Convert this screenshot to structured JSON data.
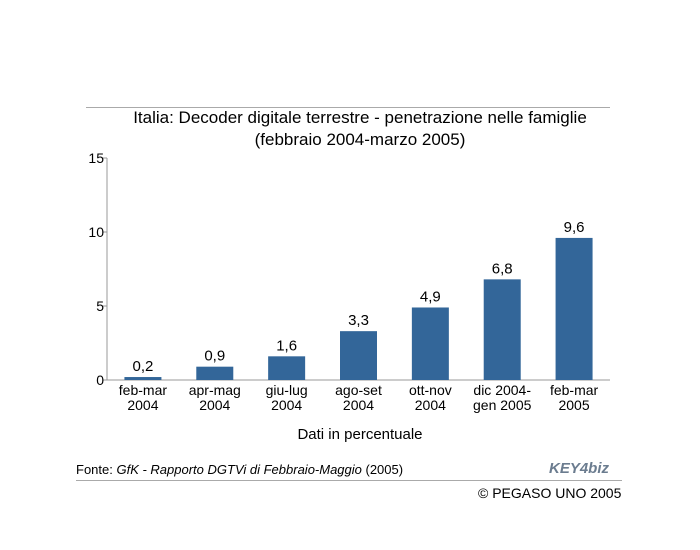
{
  "chart_data": {
    "type": "bar",
    "title": "Italia: Decoder digitale terrestre - penetrazione nelle famiglie",
    "subtitle": "(febbraio 2004-marzo 2005)",
    "xlabel": "Dati in percentuale",
    "ylabel": "",
    "categories": [
      [
        "feb-mar",
        "2004"
      ],
      [
        "apr-mag",
        "2004"
      ],
      [
        "giu-lug",
        "2004"
      ],
      [
        "ago-set",
        "2004"
      ],
      [
        "ott-nov",
        "2004"
      ],
      [
        "dic 2004-",
        "gen 2005"
      ],
      [
        "feb-mar",
        "2005"
      ]
    ],
    "values": [
      0.2,
      0.9,
      1.6,
      3.3,
      4.9,
      6.8,
      9.6
    ],
    "value_labels": [
      "0,2",
      "0,9",
      "1,6",
      "3,3",
      "4,9",
      "6,8",
      "9,6"
    ],
    "ylim": [
      0,
      15
    ],
    "yticks": [
      0,
      5,
      10,
      15
    ],
    "ytick_labels": [
      "0",
      "5",
      "10",
      "15"
    ],
    "grid": false,
    "bar_color": "#336699"
  },
  "source": {
    "prefix": "Fonte: ",
    "italic": "GfK - Rapporto DGTVi di Febbraio-Maggio",
    "suffix": " (2005)"
  },
  "logo_text": "KEY4biz",
  "copyright": "© PEGASO UNO 2005"
}
